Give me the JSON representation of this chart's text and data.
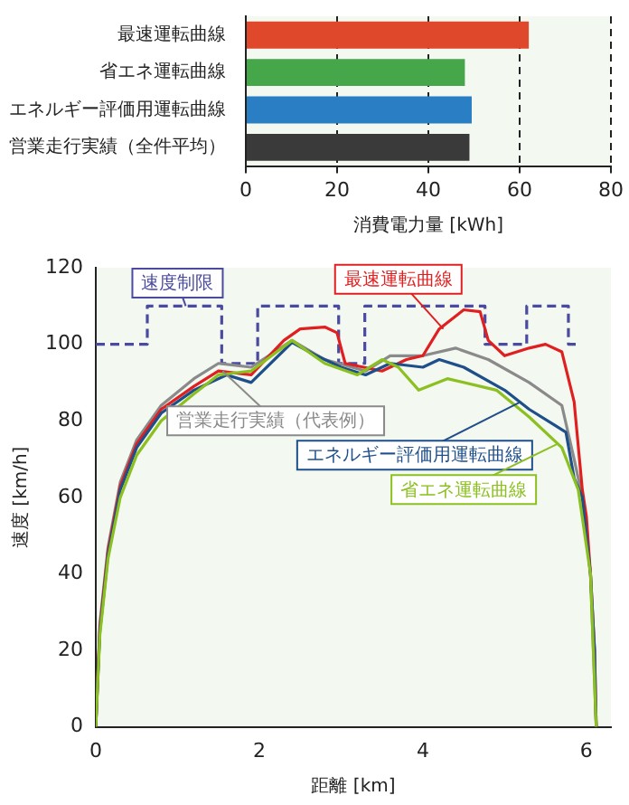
{
  "chart_data": [
    {
      "type": "bar",
      "orientation": "horizontal",
      "categories": [
        "最速運転曲線",
        "省エネ運転曲線",
        "エネルギー評価用運転曲線",
        "営業走行実績（全件平均）"
      ],
      "values": [
        62,
        48,
        49.5,
        49
      ],
      "colors": [
        "#e0482c",
        "#45a64a",
        "#2a7fc4",
        "#3a3a3a"
      ],
      "xlabel": "消費電力量 [kWh]",
      "xlim": [
        0,
        80
      ],
      "xticks": [
        0,
        20,
        40,
        60,
        80
      ],
      "grid": "x"
    },
    {
      "type": "line",
      "xlabel": "距離 [km]",
      "ylabel": "速度 [km/h]",
      "xlim": [
        0,
        6.3
      ],
      "xticks": [
        0,
        2,
        4,
        6
      ],
      "ylim": [
        0,
        120
      ],
      "yticks": [
        0,
        20,
        40,
        60,
        80,
        100,
        120
      ],
      "marker": "none",
      "series": [
        {
          "name": "速度制限",
          "type": "step",
          "color": "#4a4aa0",
          "line_style": "dashed",
          "x": [
            0,
            0.63,
            1.54,
            1.98,
            2.97,
            3.29,
            4.76,
            5.27,
            5.78,
            5.91
          ],
          "values": [
            100,
            110,
            95,
            110,
            95,
            110,
            100,
            110,
            100,
            100
          ]
        },
        {
          "name": "営業走行実績（代表例）",
          "color": "#8a8a8a",
          "x": [
            0,
            0.05,
            0.15,
            0.3,
            0.5,
            0.8,
            1.2,
            1.5,
            1.9,
            2.4,
            2.8,
            3.3,
            3.6,
            4.0,
            4.4,
            4.8,
            5.3,
            5.7,
            5.85,
            5.95,
            6.05,
            6.12
          ],
          "values": [
            0,
            27,
            47,
            64,
            75,
            84,
            91,
            95,
            94,
            101,
            96,
            93,
            97,
            97,
            99,
            96,
            90,
            84,
            70,
            60,
            40,
            0
          ]
        },
        {
          "name": "最速運転曲線",
          "color": "#e02020",
          "x": [
            0,
            0.05,
            0.15,
            0.3,
            0.5,
            0.8,
            1.2,
            1.5,
            1.9,
            2.3,
            2.5,
            2.8,
            2.95,
            3.05,
            3.5,
            3.8,
            4.0,
            4.2,
            4.5,
            4.7,
            4.8,
            5.0,
            5.3,
            5.5,
            5.7,
            5.85,
            5.95,
            6.0,
            6.05,
            6.1,
            6.12
          ],
          "values": [
            0,
            26,
            46,
            63,
            74,
            83,
            89,
            93,
            92,
            101,
            104,
            104.5,
            103,
            95,
            93,
            96,
            97,
            104,
            109,
            108.5,
            101,
            97,
            99,
            100,
            98,
            85,
            62,
            55,
            40,
            20,
            0
          ]
        },
        {
          "name": "エネルギー評価用運転曲線",
          "color": "#1f4f8a",
          "x": [
            0,
            0.05,
            0.15,
            0.3,
            0.5,
            0.8,
            1.2,
            1.6,
            1.9,
            2.4,
            2.7,
            3.0,
            3.3,
            3.6,
            4.0,
            4.2,
            4.5,
            5.0,
            5.3,
            5.6,
            5.75,
            5.85,
            5.95,
            6.05,
            6.1,
            6.12
          ],
          "values": [
            0,
            25,
            45,
            62,
            73,
            82,
            88,
            92,
            90,
            100.5,
            97,
            94,
            92,
            95,
            94,
            96,
            94,
            88,
            83,
            79,
            77,
            65,
            60,
            40,
            20,
            0
          ]
        },
        {
          "name": "省エネ運転曲線",
          "color": "#8cc020",
          "x": [
            0,
            0.05,
            0.15,
            0.3,
            0.5,
            0.8,
            1.2,
            1.5,
            1.9,
            2.4,
            2.8,
            3.2,
            3.5,
            3.7,
            3.95,
            4.3,
            4.9,
            5.3,
            5.7,
            5.9,
            6.05,
            6.12
          ],
          "values": [
            0,
            24,
            44,
            60,
            71,
            80,
            87,
            92,
            93,
            101,
            95,
            92,
            96,
            94,
            88,
            91,
            88,
            81,
            73,
            62,
            40,
            0
          ]
        }
      ]
    }
  ]
}
